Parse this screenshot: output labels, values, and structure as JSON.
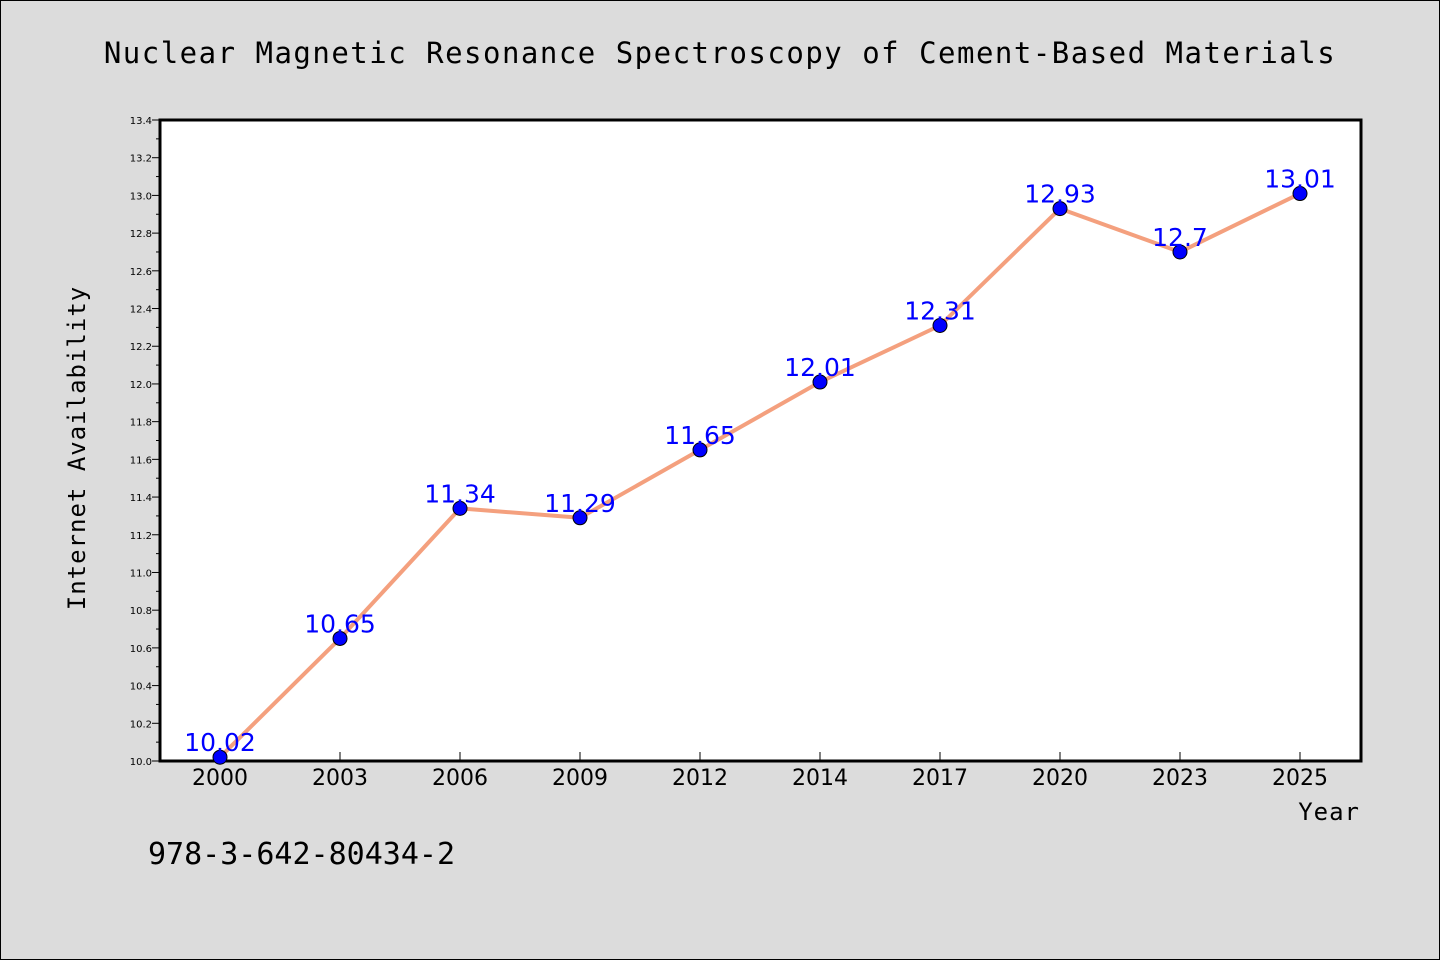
{
  "chart_data": {
    "type": "line",
    "title": "Nuclear Magnetic Resonance Spectroscopy of Cement-Based Materials",
    "xlabel": "Year",
    "ylabel": "Internet Availability",
    "categories": [
      "2000",
      "2003",
      "2006",
      "2009",
      "2012",
      "2014",
      "2017",
      "2020",
      "2023",
      "2025"
    ],
    "series": [
      {
        "values": [
          10.02,
          10.65,
          11.34,
          11.29,
          11.65,
          12.01,
          12.31,
          12.93,
          12.7,
          13.01
        ],
        "data_labels": [
          "10.02",
          "10.65",
          "11.34",
          "11.29",
          "11.65",
          "12.01",
          "12.31",
          "12.93",
          "12.7",
          "13.01"
        ],
        "line_color": "#f4a07e",
        "marker_color": "#0000ff"
      }
    ],
    "ylim": [
      10.0,
      13.4
    ],
    "yticks": [
      "10.0",
      "10.2",
      "10.4",
      "10.6",
      "10.8",
      "11.0",
      "11.2",
      "11.4",
      "11.6",
      "11.8",
      "12.0",
      "12.2",
      "12.4",
      "12.6",
      "12.8",
      "13.0",
      "13.2",
      "13.4"
    ],
    "grid": false,
    "legend": "none"
  },
  "footer": {
    "isbn": "978-3-642-80434-2"
  },
  "colors": {
    "background": "#dcdcdc",
    "plot_background": "#ffffff",
    "line": "#f4a07e",
    "marker": "#0000ff",
    "data_label": "#0000ff"
  }
}
